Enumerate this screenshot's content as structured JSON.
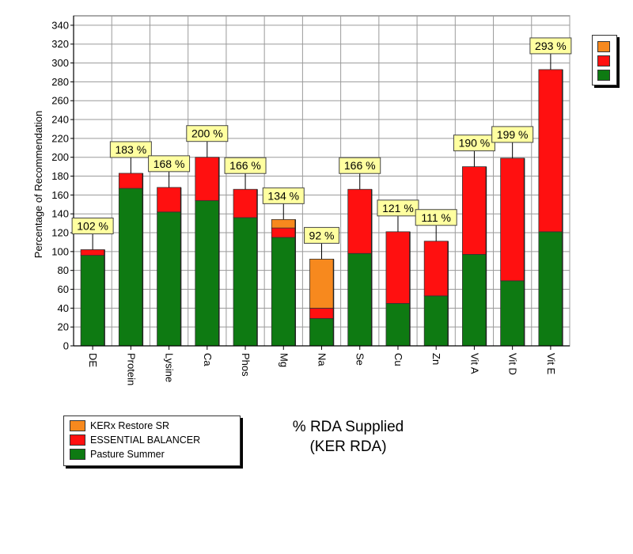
{
  "chart_data": {
    "type": "stacked-bar",
    "title": "",
    "xlabel": "",
    "ylabel": "Percentage of Recommendation",
    "ylim": [
      0,
      350
    ],
    "yticks": [
      0,
      20,
      40,
      60,
      80,
      100,
      120,
      140,
      160,
      180,
      200,
      220,
      240,
      260,
      280,
      300,
      320,
      340
    ],
    "grid": true,
    "categories": [
      "DE",
      "Protein",
      "Lysine",
      "Ca",
      "Phos",
      "Mg",
      "Na",
      "Se",
      "Cu",
      "Zn",
      "Vit A",
      "Vit D",
      "Vit E"
    ],
    "series": [
      {
        "name": "Pasture Summer",
        "color": "#0e7a12",
        "values": [
          96,
          167,
          142,
          154,
          136,
          115,
          29,
          98,
          45,
          53,
          97,
          69,
          121
        ]
      },
      {
        "name": "ESSENTIAL BALANCER",
        "color": "#ff1010",
        "values": [
          6,
          16,
          26,
          46,
          30,
          10,
          11,
          68,
          76,
          58,
          93,
          130,
          172
        ]
      },
      {
        "name": "KERx Restore SR",
        "color": "#f7891e",
        "values": [
          0,
          0,
          0,
          0,
          0,
          9,
          52,
          0,
          0,
          0,
          0,
          0,
          0
        ]
      }
    ],
    "data_labels": [
      "102 %",
      "183 %",
      "168 %",
      "200 %",
      "166 %",
      "134 %",
      "92 %",
      "166 %",
      "121 %",
      "111 %",
      "190 %",
      "199 %",
      "293 %"
    ],
    "legend": {
      "placement": "bottom-left",
      "entries": [
        "KERx Restore SR",
        "ESSENTIAL BALANCER",
        "Pasture Summer"
      ]
    },
    "caption": [
      "% RDA Supplied",
      "(KER RDA)"
    ]
  }
}
